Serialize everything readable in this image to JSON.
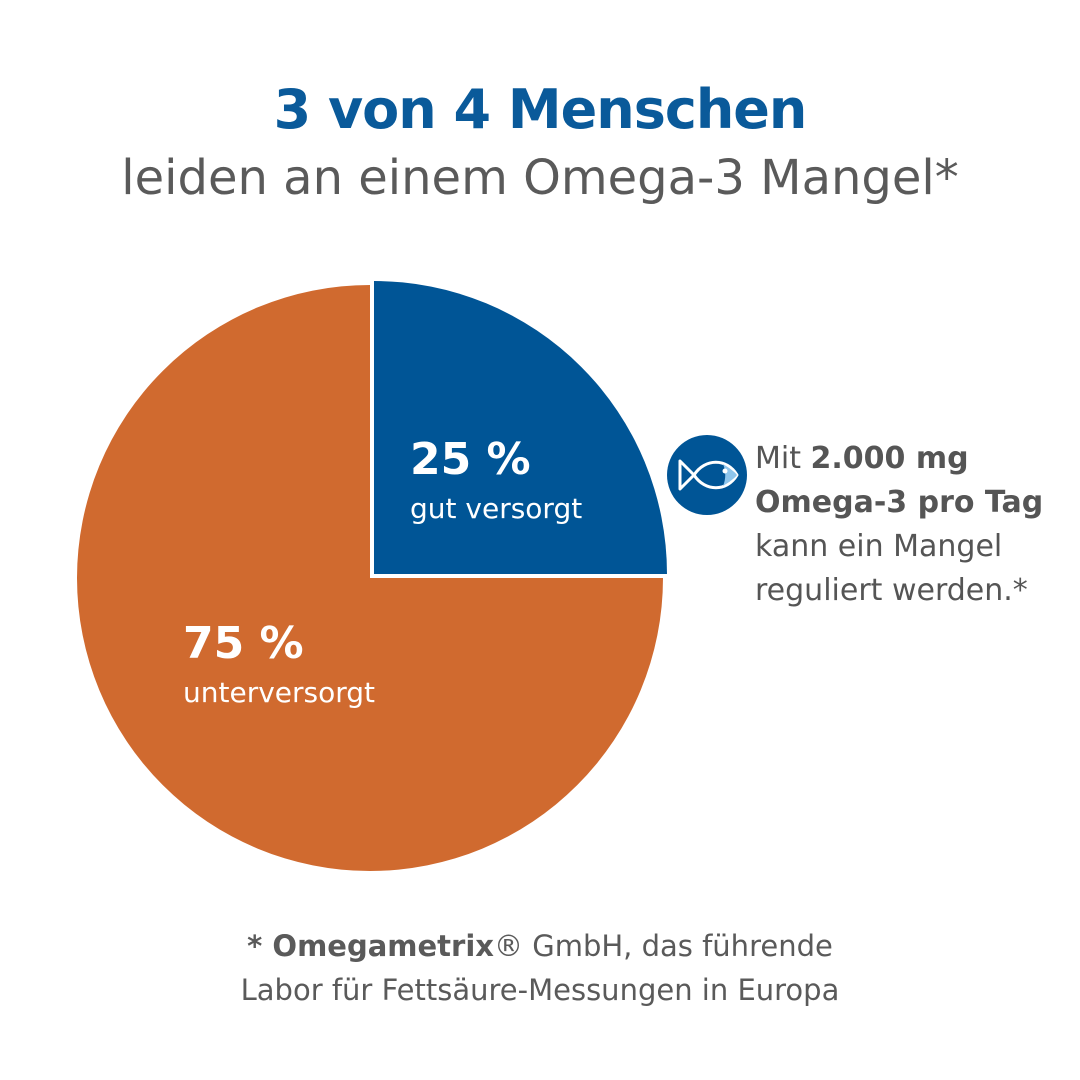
{
  "header": {
    "title": "3 von 4  Menschen",
    "subtitle": "leiden an einem Omega-3 Mangel*"
  },
  "chart_data": {
    "type": "pie",
    "slices": [
      {
        "value": 25,
        "value_label": "25 %",
        "label": "gut versorgt",
        "color": "#005596"
      },
      {
        "value": 75,
        "value_label": "75 %",
        "label": "unterversorgt",
        "color": "#d06a2f"
      }
    ]
  },
  "note": {
    "icon": "fish-icon",
    "line1_prefix": "Mit ",
    "line1_bold": "2.000 mg",
    "line2_bold": "Omega-3 pro Tag",
    "line3": "kann ein Mangel",
    "line4": "reguliert werden.*"
  },
  "footnote": {
    "asterisk_brand": "* Omegametrix",
    "line1_rest": "® GmbH, das führende",
    "line2": "Labor für Fettsäure-Messungen in Europa"
  }
}
